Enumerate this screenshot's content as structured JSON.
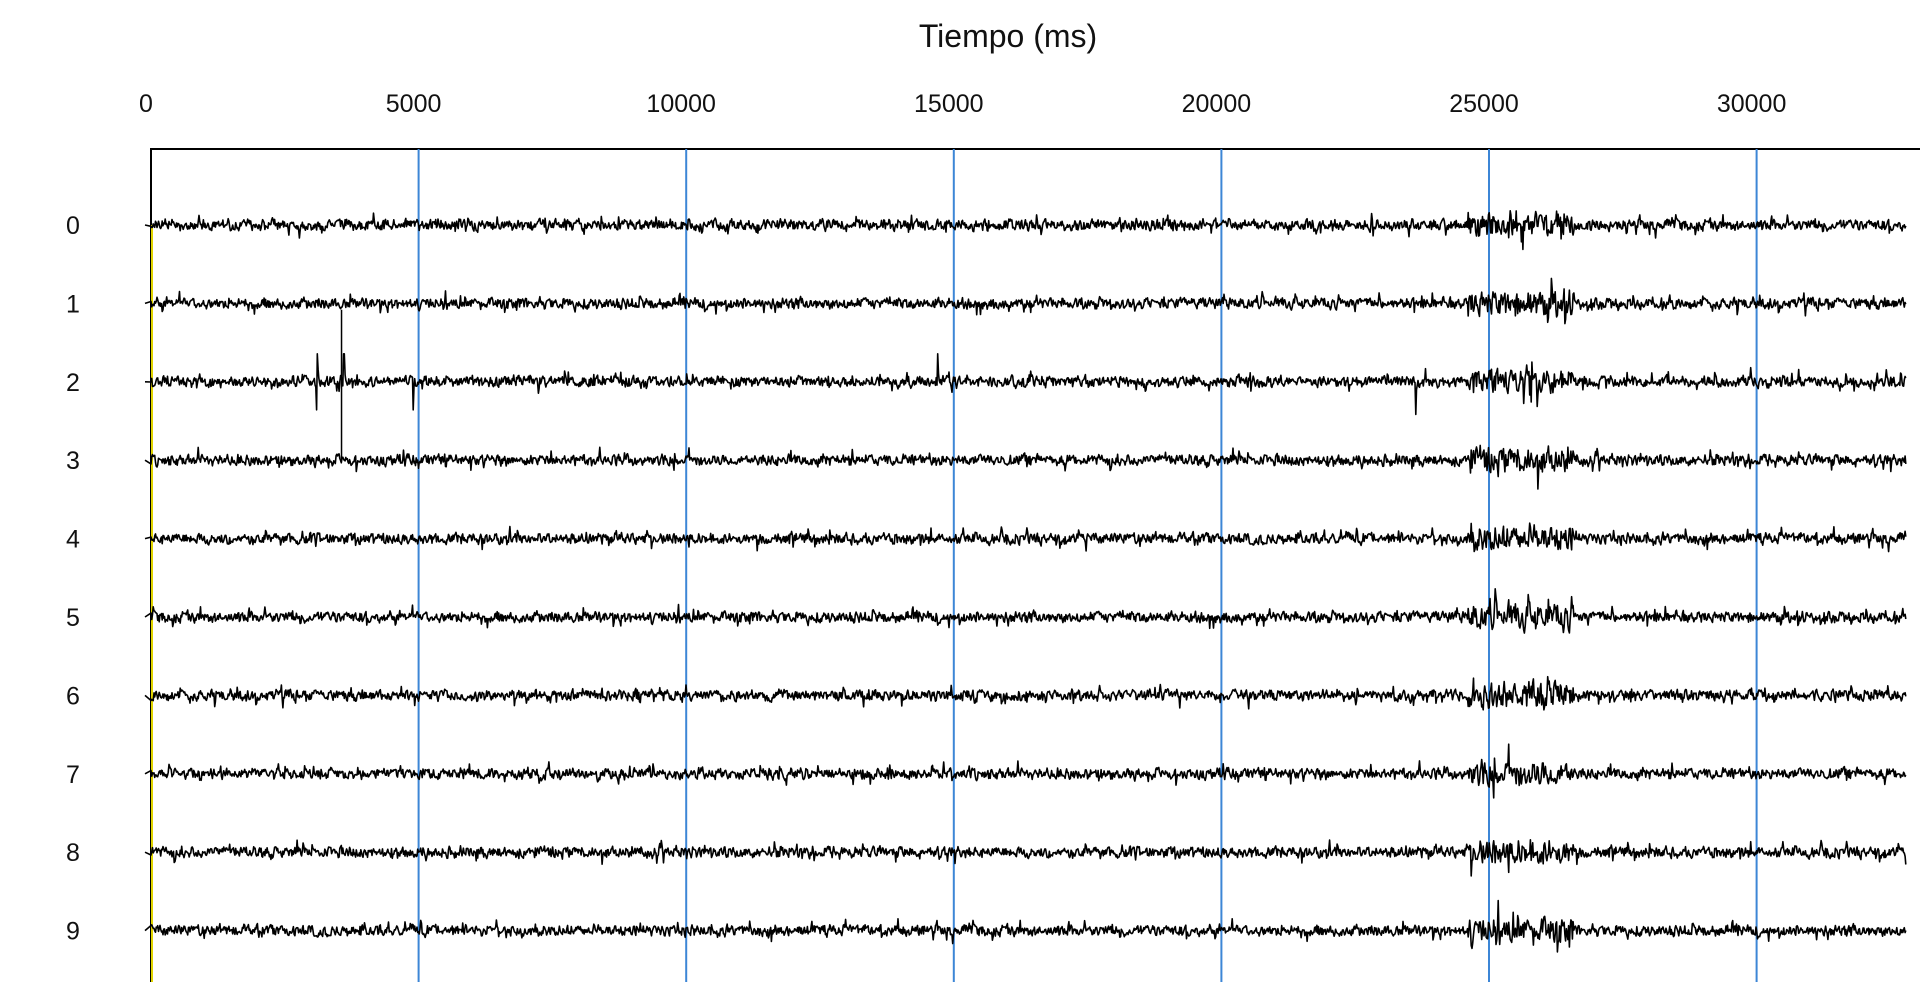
{
  "chart_data": {
    "type": "line",
    "title": "",
    "xlabel": "Tiempo (ms)",
    "ylabel": "",
    "xlim": [
      0,
      32800
    ],
    "x_ticks": [
      "0",
      "5000",
      "10000",
      "15000",
      "20000",
      "25000",
      "30000"
    ],
    "x_tick_values": [
      0,
      5000,
      10000,
      15000,
      20000,
      25000,
      30000
    ],
    "x_axis_position": "top",
    "grid": "vertical lines at x ticks",
    "channels": [
      "0",
      "1",
      "2",
      "3",
      "4",
      "5",
      "6",
      "7",
      "8",
      "9"
    ],
    "events": [
      {
        "description_channels": "all",
        "x_start": 24600,
        "x_end": 26600,
        "kind": "burst"
      },
      {
        "channel": "2",
        "x": [
          3100,
          3600,
          4900,
          14700
        ],
        "kind": "spike"
      }
    ],
    "colors": {
      "signal": "#000000",
      "grid": "#3c86d6",
      "marker": "#e0d400",
      "frame": "#000000"
    }
  }
}
